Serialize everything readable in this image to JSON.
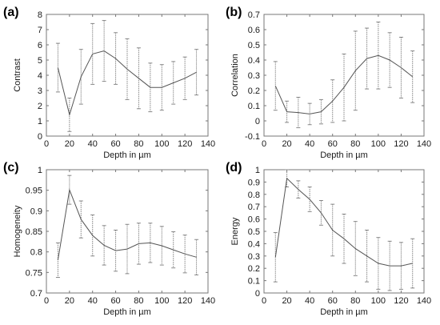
{
  "chart_data": [
    {
      "panel_label": "(a)",
      "type": "line",
      "xlabel": "Depth in µm",
      "ylabel": "Contrast",
      "xlim": [
        0,
        140
      ],
      "ylim": [
        0,
        8
      ],
      "x_ticks": [
        "0",
        "20",
        "40",
        "60",
        "80",
        "100",
        "120",
        "140"
      ],
      "y_ticks": [
        "0",
        "1",
        "2",
        "3",
        "4",
        "5",
        "6",
        "7",
        "8"
      ],
      "x": [
        10,
        20,
        30,
        40,
        50,
        60,
        70,
        80,
        90,
        100,
        110,
        120,
        130
      ],
      "y": [
        4.5,
        1.4,
        3.9,
        5.4,
        5.6,
        5.1,
        4.4,
        3.8,
        3.2,
        3.2,
        3.5,
        3.8,
        4.2
      ],
      "err": [
        1.6,
        1.1,
        1.8,
        2.0,
        2.0,
        1.7,
        2.0,
        2.0,
        1.6,
        1.5,
        1.4,
        1.4,
        1.5
      ],
      "grid": false
    },
    {
      "panel_label": "(b)",
      "type": "line",
      "xlabel": "Depth in µm",
      "ylabel": "Correlation",
      "xlim": [
        0,
        140
      ],
      "ylim": [
        -0.1,
        0.7
      ],
      "x_ticks": [
        "0",
        "20",
        "40",
        "60",
        "80",
        "100",
        "120",
        "140"
      ],
      "y_ticks": [
        "-0.1",
        "0",
        "0.1",
        "0.2",
        "0.3",
        "0.4",
        "0.5",
        "0.6",
        "0.7"
      ],
      "x": [
        10,
        20,
        30,
        40,
        50,
        60,
        70,
        80,
        90,
        100,
        110,
        120,
        130
      ],
      "y": [
        0.23,
        0.06,
        0.055,
        0.045,
        0.06,
        0.13,
        0.22,
        0.33,
        0.41,
        0.43,
        0.4,
        0.35,
        0.29
      ],
      "err": [
        0.16,
        0.07,
        0.1,
        0.07,
        0.08,
        0.14,
        0.22,
        0.26,
        0.2,
        0.22,
        0.18,
        0.2,
        0.17
      ],
      "grid": false
    },
    {
      "panel_label": "(c)",
      "type": "line",
      "xlabel": "Depth in µm",
      "ylabel": "Homogeneity",
      "xlim": [
        0,
        140
      ],
      "ylim": [
        0.7,
        1
      ],
      "x_ticks": [
        "0",
        "20",
        "40",
        "60",
        "80",
        "100",
        "120",
        "140"
      ],
      "y_ticks": [
        "0.7",
        "0.75",
        "0.8",
        "0.85",
        "0.9",
        "0.95",
        "1"
      ],
      "x": [
        10,
        20,
        30,
        40,
        50,
        60,
        70,
        80,
        90,
        100,
        110,
        120,
        130
      ],
      "y": [
        0.78,
        0.951,
        0.879,
        0.84,
        0.816,
        0.803,
        0.807,
        0.82,
        0.822,
        0.815,
        0.805,
        0.795,
        0.787
      ],
      "err": [
        0.042,
        0.035,
        0.045,
        0.05,
        0.048,
        0.05,
        0.06,
        0.05,
        0.048,
        0.047,
        0.044,
        0.046,
        0.043
      ],
      "grid": false
    },
    {
      "panel_label": "(d)",
      "type": "line",
      "xlabel": "Depth in µm",
      "ylabel": "Energy",
      "xlim": [
        0,
        140
      ],
      "ylim": [
        0,
        1
      ],
      "x_ticks": [
        "0",
        "20",
        "40",
        "60",
        "80",
        "100",
        "120",
        "140"
      ],
      "y_ticks": [
        "0",
        "0.1",
        "0.2",
        "0.3",
        "0.4",
        "0.5",
        "0.6",
        "0.7",
        "0.8",
        "0.9",
        "1"
      ],
      "x": [
        10,
        20,
        30,
        40,
        50,
        60,
        70,
        80,
        90,
        100,
        110,
        120,
        130
      ],
      "y": [
        0.29,
        0.93,
        0.84,
        0.76,
        0.65,
        0.51,
        0.44,
        0.36,
        0.3,
        0.24,
        0.22,
        0.22,
        0.24
      ],
      "err": [
        0.2,
        0.07,
        0.07,
        0.1,
        0.1,
        0.21,
        0.2,
        0.22,
        0.21,
        0.21,
        0.2,
        0.19,
        0.2
      ],
      "grid": false
    }
  ]
}
